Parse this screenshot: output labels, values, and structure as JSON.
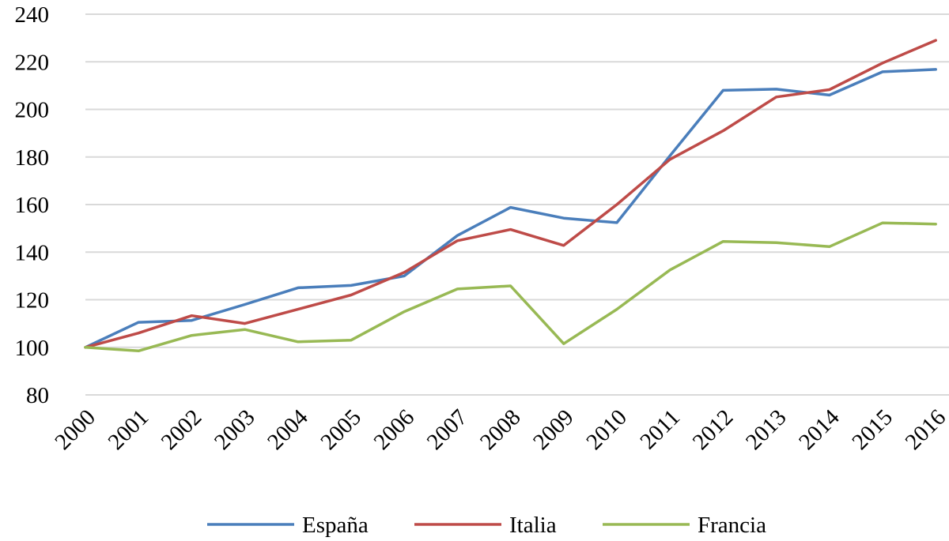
{
  "chart_data": {
    "type": "line",
    "title": "",
    "xlabel": "",
    "ylabel": "",
    "categories": [
      "2000",
      "2001",
      "2002",
      "2003",
      "2004",
      "2005",
      "2006",
      "2007",
      "2008",
      "2009",
      "2010",
      "2011",
      "2012",
      "2013",
      "2014",
      "2015",
      "2016"
    ],
    "ylim": [
      80,
      240
    ],
    "yticks": [
      80,
      100,
      120,
      140,
      160,
      180,
      200,
      220,
      240
    ],
    "grid": true,
    "legend_position": "bottom",
    "series": [
      {
        "name": "España",
        "color": "#4a7ebb",
        "values": [
          100,
          110.5,
          111.3,
          118.0,
          125.0,
          126.0,
          130.0,
          147.0,
          158.8,
          154.3,
          152.4,
          180.5,
          208.0,
          208.5,
          206.0,
          215.8,
          216.8
        ]
      },
      {
        "name": "Italia",
        "color": "#be4b48",
        "values": [
          100,
          106.0,
          113.3,
          110.0,
          116.0,
          122.0,
          131.5,
          144.8,
          149.5,
          142.8,
          160.0,
          179.0,
          191.0,
          205.2,
          208.3,
          219.5,
          229.0
        ]
      },
      {
        "name": "Francia",
        "color": "#98b954",
        "values": [
          100,
          98.5,
          105.0,
          107.5,
          102.3,
          103.0,
          115.0,
          124.5,
          125.8,
          101.5,
          116.0,
          132.5,
          144.5,
          144.0,
          142.3,
          152.3,
          151.8
        ]
      }
    ]
  }
}
